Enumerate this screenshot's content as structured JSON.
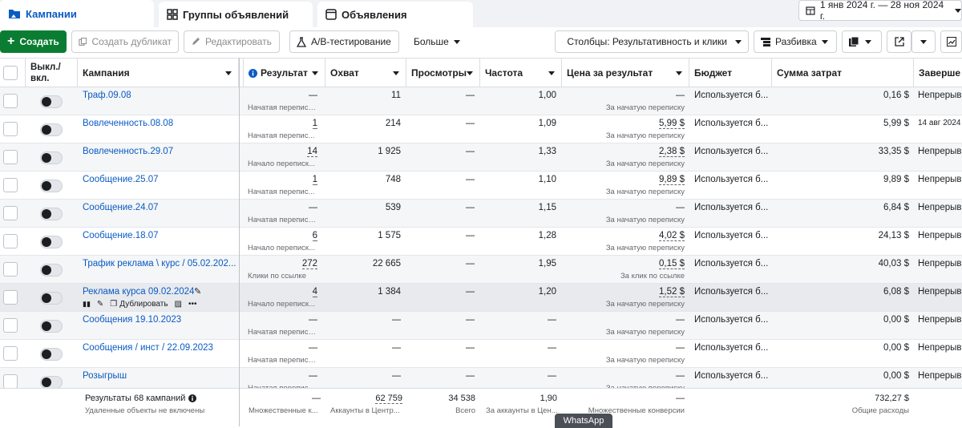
{
  "tabs": [
    {
      "label": "Кампании",
      "icon": "folder-icon"
    },
    {
      "label": "Группы объявлений",
      "icon": "grid-icon"
    },
    {
      "label": "Объявления",
      "icon": "ad-icon"
    }
  ],
  "date_range": "1 янв 2024 г. — 28 ноя 2024 г.",
  "toolbar": {
    "create": "Создать",
    "duplicate": "Создать дубликат",
    "edit": "Редактировать",
    "ab_test": "A/B-тестирование",
    "more": "Больше",
    "columns": "Столбцы: Результативность и клики",
    "breakdown": "Разбивка"
  },
  "columns": {
    "toggle": "Выкл./ вкл.",
    "campaign": "Кампания",
    "result": "Результат",
    "reach": "Охват",
    "views": "Просмотры",
    "frequency": "Частота",
    "cost_per_result": "Цена за результат",
    "budget": "Бюджет",
    "spend": "Сумма затрат",
    "end": "Заверше"
  },
  "rows": [
    {
      "name": "Траф.09.08",
      "result": "—",
      "result_sub": "Начатая переписк...",
      "reach": "11",
      "views": "—",
      "freq": "1,00",
      "cpr": "—",
      "cpr_sub": "За начатую переписку",
      "budget": "Используется б...",
      "spend": "0,16 $",
      "end": "Непрерыв..."
    },
    {
      "name": "Вовлеченность.08.08",
      "result": "1",
      "result_sub": "Начатая перепис...",
      "reach": "214",
      "views": "—",
      "freq": "1,09",
      "cpr": "5,99 $",
      "cpr_sub": "За начатую переписку",
      "budget": "Используется б...",
      "spend": "5,99 $",
      "end": "14 авг 2024"
    },
    {
      "name": "Вовлеченность.29.07",
      "result": "14",
      "result_sub": "Начало переписк...",
      "reach": "1 925",
      "views": "—",
      "freq": "1,33",
      "cpr": "2,38 $",
      "cpr_sub": "За начатую переписку",
      "budget": "Используется б...",
      "spend": "33,35 $",
      "end": "Непрерыв..."
    },
    {
      "name": "Сообщение.25.07",
      "result": "1",
      "result_sub": "Начатая перепис...",
      "reach": "748",
      "views": "—",
      "freq": "1,10",
      "cpr": "9,89 $",
      "cpr_sub": "За начатую переписку",
      "budget": "Используется б...",
      "spend": "9,89 $",
      "end": "Непрерыв..."
    },
    {
      "name": "Сообщение.24.07",
      "result": "—",
      "result_sub": "Начатая переписк...",
      "reach": "539",
      "views": "—",
      "freq": "1,15",
      "cpr": "—",
      "cpr_sub": "За начатую переписку",
      "budget": "Используется б...",
      "spend": "6,84 $",
      "end": "Непрерыв..."
    },
    {
      "name": "Сообщение.18.07",
      "result": "6",
      "result_sub": "Начало переписк...",
      "reach": "1 575",
      "views": "—",
      "freq": "1,28",
      "cpr": "4,02 $",
      "cpr_sub": "За начатую переписку",
      "budget": "Используется б...",
      "spend": "24,13 $",
      "end": "Непрерыв..."
    },
    {
      "name": "Трафик реклама \\ курс / 05.02.202...",
      "result": "272",
      "result_sub": "Клики по ссылке",
      "reach": "22 665",
      "views": "—",
      "freq": "1,95",
      "cpr": "0,15 $",
      "cpr_sub": "За клик по ссылке",
      "budget": "Используется б...",
      "spend": "40,03 $",
      "end": "Непрерыв..."
    },
    {
      "name": "Реклама курса 09.02.2024",
      "result": "4",
      "result_sub": "Начало переписк...",
      "reach": "1 384",
      "views": "—",
      "freq": "1,20",
      "cpr": "1,52 $",
      "cpr_sub": "За начатую переписку",
      "budget": "Используется б...",
      "spend": "6,08 $",
      "end": "Непрерыв..."
    },
    {
      "name": "Сообщения 19.10.2023",
      "result": "—",
      "result_sub": "Начатая переписк...",
      "reach": "—",
      "views": "—",
      "freq": "—",
      "cpr": "—",
      "cpr_sub": "За начатую переписку",
      "budget": "Используется б...",
      "spend": "0,00 $",
      "end": "Непрерыв..."
    },
    {
      "name": "Сообщения / инст / 22.09.2023",
      "result": "—",
      "result_sub": "Начатая переписк...",
      "reach": "—",
      "views": "—",
      "freq": "—",
      "cpr": "—",
      "cpr_sub": "За начатую переписку",
      "budget": "Используется б...",
      "spend": "0,00 $",
      "end": "Непрерыв..."
    },
    {
      "name": "Розыгрыш",
      "result": "—",
      "result_sub": "Начатая переписк...",
      "reach": "—",
      "views": "—",
      "freq": "—",
      "cpr": "—",
      "cpr_sub": "За начатую переписку",
      "budget": "Используется б...",
      "spend": "0,00 $",
      "end": "Непрерыв..."
    }
  ],
  "row_actions": {
    "duplicate": "Дублировать"
  },
  "footer": {
    "title": "Результаты 68 кампаний",
    "note": "Удаленные объекты не включены",
    "result": "—",
    "result_sub": "Множественные к...",
    "reach": "62 759",
    "reach_sub": "Аккаунты в Центр...",
    "views": "34 538",
    "views_sub": "Всего",
    "freq": "1,90",
    "freq_sub": "За аккаунты в Цен...",
    "cpr": "—",
    "cpr_sub": "Множественные конверсии",
    "spend": "732,27 $",
    "spend_sub": "Общие расходы"
  },
  "whatsapp": "WhatsApp"
}
